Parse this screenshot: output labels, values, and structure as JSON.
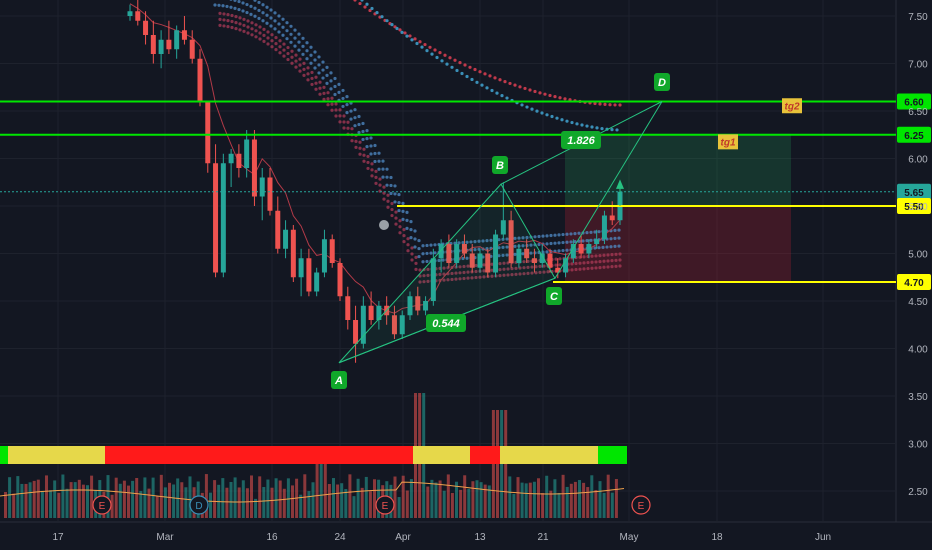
{
  "chart_data": {
    "type": "candlestick",
    "title": "",
    "y_axis": {
      "ticks": [
        "7.50",
        "7.00",
        "6.50",
        "6.00",
        "5.50",
        "5.00",
        "4.50",
        "4.00",
        "3.50",
        "3.00",
        "2.50"
      ],
      "range": [
        2.15,
        7.75
      ],
      "position": "right"
    },
    "x_axis": {
      "ticks": [
        "17",
        "Mar",
        "16",
        "24",
        "Apr",
        "13",
        "21",
        "May",
        "18",
        "Jun"
      ]
    },
    "price_levels": [
      {
        "label": "6.60",
        "value": 6.6,
        "color": "#00e600"
      },
      {
        "label": "6.25",
        "value": 6.25,
        "color": "#00e600"
      },
      {
        "label": "5.65",
        "value": 5.65,
        "color": "#26a69a"
      },
      {
        "label": "5.50",
        "value": 5.5,
        "color": "#ffff00"
      },
      {
        "label": "4.70",
        "value": 4.7,
        "color": "#ffff00"
      }
    ],
    "targets": [
      {
        "label": "tg2",
        "value": 6.55
      },
      {
        "label": "tg1",
        "value": 6.17
      }
    ],
    "pattern_points": [
      {
        "label": "A",
        "value": 3.85
      },
      {
        "label": "B",
        "value": 5.73
      },
      {
        "label": "C",
        "value": 4.74
      },
      {
        "label": "D",
        "value": 6.6
      }
    ],
    "ratios": [
      "0.544",
      "1.826"
    ],
    "event_markers": [
      "E",
      "D",
      "E",
      "E"
    ],
    "candles": [
      [
        7.5,
        7.62,
        7.45,
        7.55
      ],
      [
        7.55,
        7.7,
        7.4,
        7.45
      ],
      [
        7.45,
        7.55,
        7.2,
        7.3
      ],
      [
        7.3,
        7.45,
        7.0,
        7.1
      ],
      [
        7.1,
        7.35,
        6.95,
        7.25
      ],
      [
        7.25,
        7.45,
        7.1,
        7.15
      ],
      [
        7.15,
        7.4,
        7.05,
        7.35
      ],
      [
        7.35,
        7.5,
        7.2,
        7.25
      ],
      [
        7.25,
        7.35,
        7.0,
        7.05
      ],
      [
        7.05,
        7.15,
        6.55,
        6.6
      ],
      [
        6.6,
        6.6,
        5.85,
        5.95
      ],
      [
        5.95,
        6.15,
        4.75,
        4.8
      ],
      [
        4.8,
        6.05,
        4.75,
        5.95
      ],
      [
        5.95,
        6.1,
        5.7,
        6.05
      ],
      [
        6.05,
        6.15,
        5.8,
        5.9
      ],
      [
        5.9,
        6.3,
        5.8,
        6.2
      ],
      [
        6.2,
        6.3,
        5.5,
        5.6
      ],
      [
        5.6,
        5.9,
        5.35,
        5.8
      ],
      [
        5.8,
        5.9,
        5.4,
        5.45
      ],
      [
        5.45,
        5.6,
        5.0,
        5.05
      ],
      [
        5.05,
        5.35,
        4.95,
        5.25
      ],
      [
        5.25,
        5.3,
        4.7,
        4.75
      ],
      [
        4.75,
        5.05,
        4.55,
        4.95
      ],
      [
        4.95,
        5.05,
        4.55,
        4.6
      ],
      [
        4.6,
        4.85,
        4.55,
        4.8
      ],
      [
        4.8,
        5.25,
        4.75,
        5.15
      ],
      [
        5.15,
        5.2,
        4.85,
        4.9
      ],
      [
        4.9,
        4.95,
        4.5,
        4.55
      ],
      [
        4.55,
        4.65,
        4.2,
        4.3
      ],
      [
        4.3,
        4.45,
        3.85,
        4.05
      ],
      [
        4.05,
        4.55,
        4.0,
        4.45
      ],
      [
        4.45,
        4.6,
        4.25,
        4.3
      ],
      [
        4.3,
        4.5,
        4.2,
        4.45
      ],
      [
        4.45,
        4.55,
        4.25,
        4.35
      ],
      [
        4.35,
        4.45,
        4.1,
        4.15
      ],
      [
        4.15,
        4.4,
        4.1,
        4.35
      ],
      [
        4.35,
        4.6,
        4.3,
        4.55
      ],
      [
        4.55,
        4.65,
        4.35,
        4.4
      ],
      [
        4.4,
        4.55,
        4.35,
        4.5
      ],
      [
        4.5,
        5.05,
        4.45,
        4.95
      ],
      [
        4.95,
        5.15,
        4.8,
        5.1
      ],
      [
        5.1,
        5.2,
        4.85,
        4.9
      ],
      [
        4.9,
        5.15,
        4.85,
        5.1
      ],
      [
        5.1,
        5.2,
        4.95,
        5.0
      ],
      [
        5.0,
        5.1,
        4.8,
        4.85
      ],
      [
        4.85,
        5.05,
        4.8,
        5.0
      ],
      [
        5.0,
        5.05,
        4.75,
        4.8
      ],
      [
        4.8,
        5.25,
        4.75,
        5.2
      ],
      [
        5.2,
        5.75,
        5.15,
        5.35
      ],
      [
        5.35,
        5.45,
        4.85,
        4.9
      ],
      [
        4.9,
        5.1,
        4.85,
        5.05
      ],
      [
        5.05,
        5.15,
        4.9,
        4.95
      ],
      [
        4.95,
        5.05,
        4.8,
        4.9
      ],
      [
        4.9,
        5.1,
        4.85,
        5.0
      ],
      [
        5.0,
        5.05,
        4.8,
        4.85
      ],
      [
        4.85,
        4.95,
        4.74,
        4.8
      ],
      [
        4.8,
        5.0,
        4.75,
        4.95
      ],
      [
        4.95,
        5.15,
        4.9,
        5.1
      ],
      [
        5.1,
        5.2,
        4.95,
        5.0
      ],
      [
        5.0,
        5.15,
        4.95,
        5.1
      ],
      [
        5.1,
        5.25,
        5.05,
        5.15
      ],
      [
        5.15,
        5.45,
        5.1,
        5.4
      ],
      [
        5.4,
        5.55,
        5.3,
        5.35
      ],
      [
        5.35,
        5.7,
        5.3,
        5.65
      ]
    ],
    "volume_heatmap_colors": [
      "#00e600",
      "#e6d84a",
      "#ff1a1a",
      "#e6d84a",
      "#ff1a1a",
      "#e6d84a",
      "#00e600"
    ]
  }
}
